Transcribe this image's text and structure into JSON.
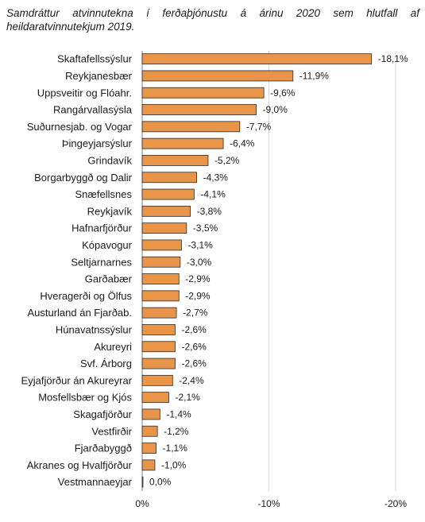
{
  "title": "Samdráttur atvinnutekna í ferðaþjónustu á árinu 2020 sem hlutfall af heildaratvinnutekjum 2019.",
  "chart_data": {
    "type": "bar",
    "orientation": "horizontal",
    "title": "Samdráttur atvinnutekna í ferðaþjónustu á árinu 2020 sem hlutfall af heildaratvinnutekjum 2019.",
    "categories": [
      "Skaftafellssýslur",
      "Reykjanesbær",
      "Uppsveitir og Flóahr.",
      "Rangárvallasýsla",
      "Suðurnesjab. og Vogar",
      "Þingeyjarsýslur",
      "Grindavík",
      "Borgarbyggð og Dalir",
      "Snæfellsnes",
      "Reykjavík",
      "Hafnarfjörður",
      "Kópavogur",
      "Seltjarnarnes",
      "Garðabær",
      "Hveragerði og Ölfus",
      "Austurland án Fjarðab.",
      "Húnavatnssýslur",
      "Akureyri",
      "Svf. Árborg",
      "Eyjafjörður án Akureyrar",
      "Mosfellsbær og Kjós",
      "Skagafjörður",
      "Vestfirðir",
      "Fjarðabyggð",
      "Akranes og Hvalfjörður",
      "Vestmannaeyjar"
    ],
    "values": [
      -18.1,
      -11.9,
      -9.6,
      -9.0,
      -7.7,
      -6.4,
      -5.2,
      -4.3,
      -4.1,
      -3.8,
      -3.5,
      -3.1,
      -3.0,
      -2.9,
      -2.9,
      -2.7,
      -2.6,
      -2.6,
      -2.6,
      -2.4,
      -2.1,
      -1.4,
      -1.2,
      -1.1,
      -1.0,
      0.0
    ],
    "value_labels": [
      "-18,1%",
      "-11,9%",
      "-9,6%",
      "-9,0%",
      "-7,7%",
      "-6,4%",
      "-5,2%",
      "-4,3%",
      "-4,1%",
      "-3,8%",
      "-3,5%",
      "-3,1%",
      "-3,0%",
      "-2,9%",
      "-2,9%",
      "-2,7%",
      "-2,6%",
      "-2,6%",
      "-2,6%",
      "-2,4%",
      "-2,1%",
      "-1,4%",
      "-1,2%",
      "-1,1%",
      "-1,0%",
      "0,0%"
    ],
    "xlim": [
      0,
      -20
    ],
    "xticks": [
      0,
      -10,
      -20
    ],
    "xtick_labels": [
      "0%",
      "-10%",
      "-20%"
    ],
    "grid": "vertical",
    "legend": "none",
    "bar_color": "#e8954a",
    "bar_edge_color": "#2b2b2b"
  }
}
